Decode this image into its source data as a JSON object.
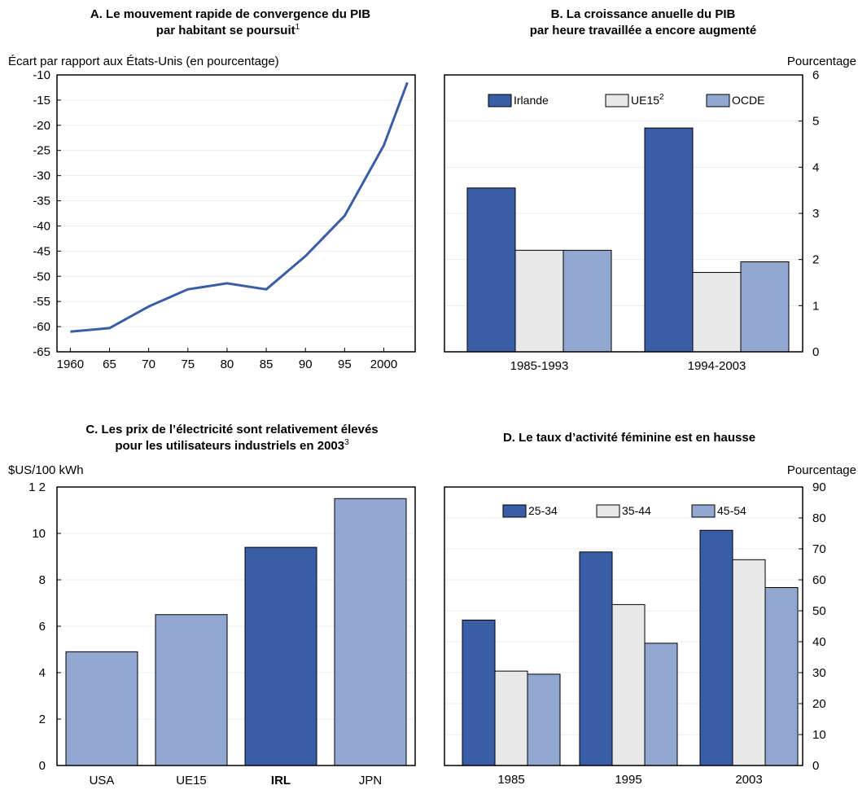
{
  "colors": {
    "dark": "#3a5ea6",
    "light": "#e8e8e8",
    "mid": "#93a8d0",
    "line": "#3a5ea6",
    "frame": "#000000",
    "grid": "#ebebeb"
  },
  "panels": {
    "a": {
      "title_line1": "A. Le mouvement rapide de convergence du PIB",
      "title_line2": "par habitant se poursuit",
      "title_note": "1",
      "unit": "Écart par rapport aux États-Unis (en pourcentage)"
    },
    "b": {
      "title_line1": "B. La croissance anuelle du PIB",
      "title_line2": "par heure travaillée a encore augmenté",
      "unit": "Pourcentage"
    },
    "c": {
      "title_line1": "C. Les prix de l’électricité sont relativement élevés",
      "title_line2": "pour les utilisateurs industriels en 2003",
      "title_note": "3",
      "unit": "$US/100 kWh"
    },
    "d": {
      "title_line1": "D. Le taux d’activité féminine est en hausse",
      "unit": "Pourcentage"
    }
  },
  "chart_data": [
    {
      "id": "a",
      "type": "line",
      "title": "A. Le mouvement rapide de convergence du PIB par habitant se poursuit",
      "ylabel": "Écart par rapport aux États-Unis (en pourcentage)",
      "x_ticks": [
        "1960",
        "65",
        "70",
        "75",
        "80",
        "85",
        "90",
        "95",
        "2000"
      ],
      "y_ticks": [
        "-10",
        "-15",
        "-20",
        "-25",
        "-30",
        "-35",
        "-40",
        "-45",
        "-50",
        "-55",
        "-60",
        "-65"
      ],
      "x": [
        1960,
        1965,
        1970,
        1975,
        1980,
        1985,
        1990,
        1995,
        2000,
        2003
      ],
      "y": [
        -61,
        -60.3,
        -56,
        -52.6,
        -51.4,
        -52.6,
        -46,
        -38,
        -24,
        -11.5
      ],
      "xlim": [
        1958.3,
        2004
      ],
      "ylim": [
        -65,
        -10
      ],
      "grid": true
    },
    {
      "id": "b",
      "type": "bar",
      "title": "B. La croissance anuelle du PIB par heure travaillée a encore augmenté",
      "ylabel": "Pourcentage",
      "categories": [
        "1985-1993",
        "1994-2003"
      ],
      "series": [
        {
          "name": "Irlande",
          "values": [
            3.55,
            4.85
          ]
        },
        {
          "name": "UE15",
          "note": "2",
          "values": [
            2.2,
            1.72
          ]
        },
        {
          "name": "OCDE",
          "values": [
            2.2,
            1.95
          ]
        }
      ],
      "y_ticks": [
        "0",
        "1",
        "2",
        "3",
        "4",
        "5",
        "6"
      ],
      "ylim": [
        0,
        6
      ],
      "grid": true,
      "legend": "top"
    },
    {
      "id": "c",
      "type": "bar",
      "title": "C. Les prix de l’électricité sont relativement élevés pour les utilisateurs industriels en 2003",
      "ylabel": "$US/100 kWh",
      "categories": [
        "USA",
        "UE15",
        "IRL",
        "JPN"
      ],
      "values": [
        4.9,
        6.5,
        9.4,
        11.5
      ],
      "highlight": "IRL",
      "y_ticks": [
        "0",
        "2",
        "4",
        "6",
        "8",
        "10",
        "1 2"
      ],
      "ylim": [
        0,
        12
      ],
      "grid": true
    },
    {
      "id": "d",
      "type": "bar",
      "title": "D. Le taux d’activité féminine est en hausse",
      "ylabel": "Pourcentage",
      "categories": [
        "1985",
        "1995",
        "2003"
      ],
      "series": [
        {
          "name": "25-34",
          "values": [
            47,
            69,
            76
          ]
        },
        {
          "name": "35-44",
          "values": [
            30.5,
            52,
            66.5
          ]
        },
        {
          "name": "45-54",
          "values": [
            29.5,
            39.5,
            57.5
          ]
        }
      ],
      "y_ticks": [
        "0",
        "10",
        "20",
        "30",
        "40",
        "50",
        "60",
        "70",
        "80",
        "90"
      ],
      "ylim": [
        0,
        90
      ],
      "grid": true,
      "legend": "top"
    }
  ]
}
